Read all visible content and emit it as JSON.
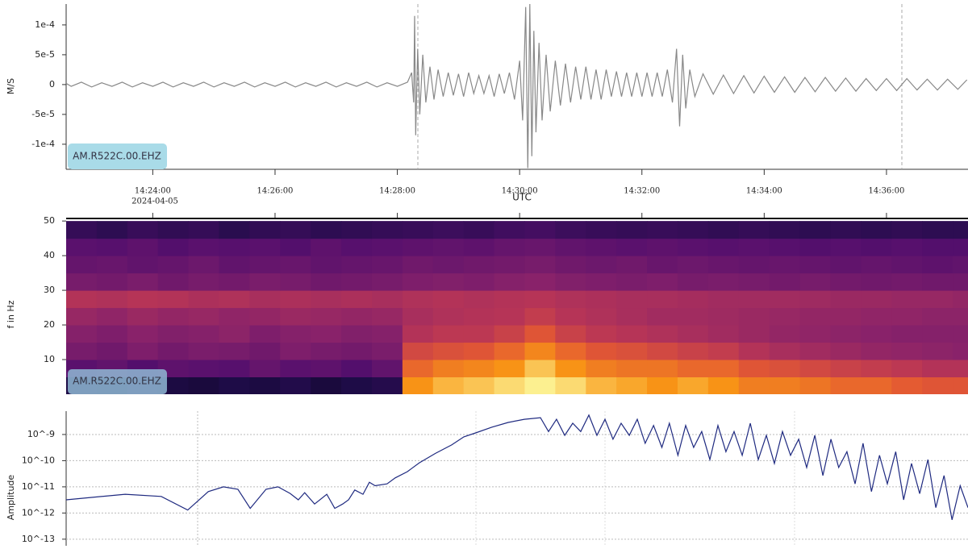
{
  "chart_data": [
    {
      "type": "line",
      "ylabel": "M/S",
      "label": "AM.R522C.00.EHZ",
      "xlabel": "UTC",
      "date": "2024-04-05",
      "color": "#888888",
      "xlim": [
        "14:22:35",
        "14:37:20"
      ],
      "xticks": [
        "14:24:00",
        "14:26:00",
        "14:28:00",
        "14:30:00",
        "14:32:00",
        "14:34:00",
        "14:36:00"
      ],
      "ylim": [
        -0.000142,
        0.000135
      ],
      "yticks": [
        {
          "value": 0.0001,
          "label": "1e-4"
        },
        {
          "value": 5e-05,
          "label": "5e-5"
        },
        0,
        {
          "value": -5e-05,
          "label": "-5e-5"
        },
        {
          "value": -0.0001,
          "label": "-1e-4"
        }
      ],
      "x": [
        "14:22:35",
        "14:22:40",
        "14:22:50",
        "14:23:00",
        "14:23:10",
        "14:23:20",
        "14:23:30",
        "14:23:40",
        "14:23:50",
        "14:24:00",
        "14:24:10",
        "14:24:20",
        "14:24:30",
        "14:24:40",
        "14:24:50",
        "14:25:00",
        "14:25:10",
        "14:25:20",
        "14:25:30",
        "14:25:40",
        "14:25:50",
        "14:26:00",
        "14:26:10",
        "14:26:20",
        "14:26:30",
        "14:26:40",
        "14:26:50",
        "14:27:00",
        "14:27:10",
        "14:27:20",
        "14:27:30",
        "14:27:40",
        "14:27:50",
        "14:28:00",
        "14:28:10",
        "14:28:14",
        "14:28:16",
        "14:28:17",
        "14:28:18",
        "14:28:20",
        "14:28:22",
        "14:28:25",
        "14:28:28",
        "14:28:32",
        "14:28:36",
        "14:28:40",
        "14:28:45",
        "14:28:50",
        "14:28:55",
        "14:29:00",
        "14:29:05",
        "14:29:10",
        "14:29:15",
        "14:29:20",
        "14:29:25",
        "14:29:30",
        "14:29:35",
        "14:29:40",
        "14:29:45",
        "14:29:50",
        "14:29:55",
        "14:30:00",
        "14:30:03",
        "14:30:06",
        "14:30:08",
        "14:30:10",
        "14:30:12",
        "14:30:14",
        "14:30:16",
        "14:30:19",
        "14:30:22",
        "14:30:26",
        "14:30:30",
        "14:30:35",
        "14:30:40",
        "14:30:45",
        "14:30:50",
        "14:30:55",
        "14:31:00",
        "14:31:05",
        "14:31:10",
        "14:31:15",
        "14:31:20",
        "14:31:25",
        "14:31:30",
        "14:31:35",
        "14:31:40",
        "14:31:45",
        "14:31:50",
        "14:31:55",
        "14:32:00",
        "14:32:05",
        "14:32:10",
        "14:32:15",
        "14:32:20",
        "14:32:25",
        "14:32:30",
        "14:32:34",
        "14:32:37",
        "14:32:40",
        "14:32:43",
        "14:32:47",
        "14:32:52",
        "14:33:00",
        "14:33:10",
        "14:33:20",
        "14:33:30",
        "14:33:40",
        "14:33:50",
        "14:34:00",
        "14:34:10",
        "14:34:20",
        "14:34:30",
        "14:34:40",
        "14:34:50",
        "14:35:00",
        "14:35:10",
        "14:35:20",
        "14:35:30",
        "14:35:40",
        "14:35:50",
        "14:36:00",
        "14:36:10",
        "14:36:20",
        "14:36:30",
        "14:36:40",
        "14:36:50",
        "14:37:00",
        "14:37:10",
        "14:37:19"
      ],
      "values": [
        2e-06,
        -3e-06,
        4e-06,
        -4e-06,
        3e-06,
        -3e-06,
        4e-06,
        -4e-06,
        3e-06,
        -3e-06,
        4e-06,
        -4e-06,
        3e-06,
        -3e-06,
        4e-06,
        -4e-06,
        3e-06,
        -3e-06,
        4e-06,
        -4e-06,
        3e-06,
        -3e-06,
        4e-06,
        -4e-06,
        3e-06,
        -3e-06,
        4e-06,
        -4e-06,
        3e-06,
        -3e-06,
        4e-06,
        -4e-06,
        3e-06,
        -3e-06,
        4e-06,
        2e-05,
        -3e-05,
        0.000115,
        -8.5e-05,
        6e-05,
        -5e-05,
        5e-05,
        -3e-05,
        3e-05,
        -2.5e-05,
        2.5e-05,
        -2e-05,
        2e-05,
        -1.8e-05,
        1.8e-05,
        -2e-05,
        2e-05,
        -1.5e-05,
        1.5e-05,
        -1.5e-05,
        1.5e-05,
        -2e-05,
        1.8e-05,
        -1.5e-05,
        2e-05,
        -2.5e-05,
        4e-05,
        -6e-05,
        0.00013,
        -0.00014,
        0.000135,
        -0.00012,
        9e-05,
        -8e-05,
        7e-05,
        -6e-05,
        5e-05,
        -4.5e-05,
        4e-05,
        -3.5e-05,
        3.5e-05,
        -3e-05,
        3e-05,
        -2.5e-05,
        3e-05,
        -2.5e-05,
        2.5e-05,
        -2.5e-05,
        2.5e-05,
        -2e-05,
        2.2e-05,
        -2e-05,
        2e-05,
        -2e-05,
        2e-05,
        -2e-05,
        2e-05,
        -2e-05,
        2e-05,
        -2e-05,
        2.5e-05,
        -3e-05,
        6e-05,
        -7e-05,
        5e-05,
        -4e-05,
        2.5e-05,
        -2e-05,
        1.8e-05,
        -1.6e-05,
        1.6e-05,
        -1.5e-05,
        1.5e-05,
        -1.4e-05,
        1.4e-05,
        -1.3e-05,
        1.3e-05,
        -1.3e-05,
        1.2e-05,
        -1.2e-05,
        1.2e-05,
        -1.1e-05,
        1.1e-05,
        -1.1e-05,
        1e-05,
        -1e-05,
        1e-05,
        -1e-05,
        1e-05,
        -9e-06,
        9e-06,
        -9e-06,
        9e-06,
        -8e-06,
        8e-06
      ]
    },
    {
      "type": "heatmap",
      "ylabel": "f in Hz",
      "label": "AM.R522C.00.EHZ",
      "colormap": "inferno",
      "zlim": [
        0,
        1
      ],
      "xlim": [
        "14:22:35",
        "14:37:20"
      ],
      "xbins": [
        "14:22:35",
        "14:23:05",
        "14:23:35",
        "14:24:05",
        "14:24:35",
        "14:25:05",
        "14:25:35",
        "14:26:05",
        "14:26:35",
        "14:27:05",
        "14:27:35",
        "14:28:05",
        "14:28:35",
        "14:29:05",
        "14:29:35",
        "14:30:05",
        "14:30:35",
        "14:31:05",
        "14:31:35",
        "14:32:05",
        "14:32:35",
        "14:33:05",
        "14:33:35",
        "14:34:05",
        "14:34:35",
        "14:35:05",
        "14:35:35",
        "14:36:05",
        "14:36:35",
        "14:37:05",
        "14:37:35"
      ],
      "ybins": [
        0,
        5,
        10,
        15,
        20,
        25,
        30,
        35,
        40,
        45,
        50
      ],
      "ylim": [
        0,
        50.5
      ],
      "yticks": [
        10,
        20,
        30,
        40,
        50
      ],
      "z": [
        [
          0.14,
          0.12,
          0.15,
          0.13,
          0.12,
          0.14,
          0.13,
          0.15,
          0.12,
          0.14,
          0.16,
          0.85,
          0.9,
          0.92,
          0.95,
          0.98,
          0.95,
          0.9,
          0.88,
          0.85,
          0.88,
          0.85,
          0.8,
          0.8,
          0.78,
          0.75,
          0.75,
          0.72,
          0.7,
          0.7
        ],
        [
          0.3,
          0.32,
          0.28,
          0.31,
          0.3,
          0.29,
          0.33,
          0.3,
          0.31,
          0.28,
          0.32,
          0.75,
          0.8,
          0.82,
          0.85,
          0.92,
          0.85,
          0.8,
          0.78,
          0.78,
          0.75,
          0.75,
          0.7,
          0.68,
          0.65,
          0.62,
          0.6,
          0.58,
          0.55,
          0.55
        ],
        [
          0.38,
          0.36,
          0.4,
          0.37,
          0.39,
          0.38,
          0.36,
          0.4,
          0.38,
          0.37,
          0.39,
          0.65,
          0.68,
          0.7,
          0.75,
          0.82,
          0.75,
          0.7,
          0.68,
          0.65,
          0.62,
          0.6,
          0.55,
          0.52,
          0.5,
          0.48,
          0.46,
          0.45,
          0.44,
          0.43
        ],
        [
          0.42,
          0.4,
          0.43,
          0.41,
          0.42,
          0.44,
          0.4,
          0.42,
          0.43,
          0.41,
          0.42,
          0.55,
          0.58,
          0.58,
          0.62,
          0.7,
          0.62,
          0.58,
          0.56,
          0.54,
          0.52,
          0.5,
          0.48,
          0.46,
          0.45,
          0.44,
          0.43,
          0.42,
          0.42,
          0.42
        ],
        [
          0.47,
          0.45,
          0.48,
          0.46,
          0.47,
          0.45,
          0.46,
          0.48,
          0.47,
          0.46,
          0.47,
          0.52,
          0.54,
          0.55,
          0.56,
          0.6,
          0.56,
          0.54,
          0.52,
          0.5,
          0.5,
          0.49,
          0.48,
          0.47,
          0.46,
          0.46,
          0.45,
          0.45,
          0.44,
          0.44
        ],
        [
          0.55,
          0.54,
          0.56,
          0.55,
          0.53,
          0.54,
          0.52,
          0.53,
          0.52,
          0.53,
          0.52,
          0.54,
          0.55,
          0.54,
          0.55,
          0.56,
          0.54,
          0.53,
          0.52,
          0.52,
          0.51,
          0.5,
          0.5,
          0.5,
          0.49,
          0.48,
          0.48,
          0.47,
          0.47,
          0.46
        ],
        [
          0.38,
          0.37,
          0.39,
          0.36,
          0.38,
          0.37,
          0.39,
          0.38,
          0.36,
          0.37,
          0.38,
          0.4,
          0.41,
          0.4,
          0.42,
          0.43,
          0.41,
          0.4,
          0.39,
          0.4,
          0.38,
          0.39,
          0.38,
          0.37,
          0.38,
          0.37,
          0.36,
          0.37,
          0.36,
          0.36
        ],
        [
          0.33,
          0.34,
          0.32,
          0.33,
          0.35,
          0.32,
          0.33,
          0.34,
          0.32,
          0.33,
          0.34,
          0.36,
          0.35,
          0.36,
          0.37,
          0.38,
          0.36,
          0.35,
          0.36,
          0.34,
          0.35,
          0.34,
          0.33,
          0.34,
          0.33,
          0.32,
          0.33,
          0.32,
          0.31,
          0.32
        ],
        [
          0.3,
          0.29,
          0.31,
          0.28,
          0.3,
          0.29,
          0.3,
          0.28,
          0.31,
          0.29,
          0.3,
          0.31,
          0.32,
          0.31,
          0.33,
          0.34,
          0.32,
          0.31,
          0.3,
          0.31,
          0.3,
          0.29,
          0.3,
          0.29,
          0.28,
          0.29,
          0.28,
          0.29,
          0.28,
          0.28
        ],
        [
          0.2,
          0.18,
          0.21,
          0.19,
          0.2,
          0.17,
          0.19,
          0.2,
          0.18,
          0.19,
          0.2,
          0.21,
          0.22,
          0.21,
          0.23,
          0.24,
          0.22,
          0.21,
          0.2,
          0.21,
          0.2,
          0.19,
          0.2,
          0.19,
          0.18,
          0.19,
          0.18,
          0.19,
          0.18,
          0.18
        ]
      ]
    },
    {
      "type": "line",
      "ylabel": "Amplitude",
      "color": "#1f2a80",
      "xscale": "log",
      "yscale": "log",
      "grid": true,
      "xlim": [
        0.001,
        50
      ],
      "ylim": [
        5.6e-14,
        7.8e-09
      ],
      "yticks": [
        {
          "value": 1e-09,
          "label": "10^-9"
        },
        {
          "value": 1e-10,
          "label": "10^-10"
        },
        {
          "value": 1e-11,
          "label": "10^-11"
        },
        {
          "value": 1e-12,
          "label": "10^-12"
        },
        {
          "value": 1e-13,
          "label": "10^-13"
        }
      ],
      "x": [
        0.001,
        0.00203,
        0.00313,
        0.0043,
        0.0055,
        0.0066,
        0.00785,
        0.0091,
        0.011,
        0.0127,
        0.0147,
        0.0162,
        0.0175,
        0.0197,
        0.0228,
        0.0251,
        0.0276,
        0.0296,
        0.0319,
        0.0352,
        0.038,
        0.0407,
        0.047,
        0.0518,
        0.0599,
        0.0692,
        0.084,
        0.102,
        0.118,
        0.136,
        0.165,
        0.201,
        0.244,
        0.296,
        0.326,
        0.359,
        0.396,
        0.436,
        0.48,
        0.529,
        0.583,
        0.642,
        0.707,
        0.779,
        0.859,
        0.946,
        1.04,
        1.15,
        1.27,
        1.39,
        1.54,
        1.69,
        1.86,
        2.05,
        2.26,
        2.49,
        2.74,
        3.02,
        3.33,
        3.67,
        4.04,
        4.45,
        4.9,
        5.4,
        5.95,
        6.56,
        7.22,
        7.96,
        8.77,
        9.66,
        10.6,
        11.7,
        12.9,
        14.2,
        15.7,
        17.3,
        19,
        21,
        23.1,
        25.4,
        28,
        30.9,
        34,
        37.5,
        41.3,
        45.5,
        50
      ],
      "values": [
        3.2e-12,
        5.2e-12,
        4.3e-12,
        1.3e-12,
        6.6e-12,
        1e-11,
        8.1e-12,
        1.5e-12,
        8.1e-12,
        1e-11,
        5.6e-12,
        3.2e-12,
        6e-12,
        2.2e-12,
        5.2e-12,
        1.5e-12,
        2.2e-12,
        3.2e-12,
        7.6e-12,
        5.2e-12,
        1.5e-11,
        1.1e-11,
        1.3e-11,
        2.2e-11,
        3.8e-11,
        8.3e-11,
        1.9e-10,
        4e-10,
        8.1e-10,
        1.15e-09,
        1.9e-09,
        2.9e-09,
        3.8e-09,
        4.4e-09,
        1.3e-09,
        3.8e-09,
        9.3e-10,
        2.7e-09,
        1.3e-09,
        5.5e-09,
        9.3e-10,
        3.8e-09,
        6.6e-10,
        2.7e-09,
        9.3e-10,
        3.8e-09,
        4.6e-10,
        2.2e-09,
        3.2e-10,
        2.7e-09,
        1.6e-10,
        2.2e-09,
        3.2e-10,
        1.3e-09,
        1.1e-10,
        2.2e-09,
        2.2e-10,
        1.3e-09,
        1.6e-10,
        2.7e-09,
        1.1e-10,
        9.3e-10,
        7.8e-11,
        1.3e-09,
        1.6e-10,
        6.6e-10,
        5.5e-11,
        9.3e-10,
        2.7e-11,
        6.6e-10,
        5.5e-11,
        2.2e-10,
        1.3e-11,
        4.6e-10,
        6.6e-12,
        1.6e-10,
        1.3e-11,
        2.2e-10,
        3.2e-12,
        7.8e-11,
        5.5e-12,
        1.1e-10,
        1.6e-12,
        2.7e-11,
        5.5e-13,
        1.1e-11,
        1.6e-12
      ]
    }
  ]
}
